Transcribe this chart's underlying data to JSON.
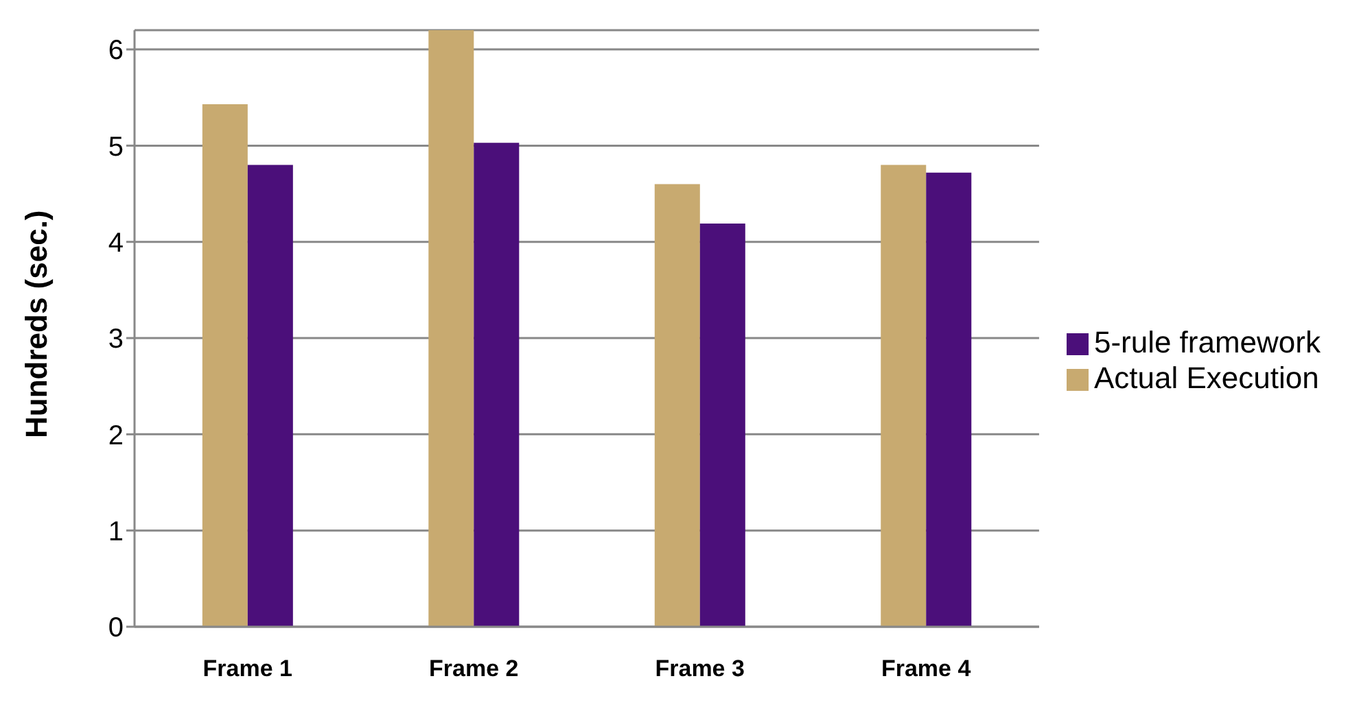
{
  "chart_data": {
    "type": "bar",
    "ylabel": "Hundreds (sec.)",
    "categories": [
      "Frame 1",
      "Frame 2",
      "Frame 3",
      "Frame 4"
    ],
    "series": [
      {
        "name": "Actual Execution",
        "color": "#c8aa70",
        "values": [
          5.43,
          6.2,
          4.6,
          4.8
        ]
      },
      {
        "name": "5-rule framework",
        "color": "#4b0f7a",
        "values": [
          4.8,
          5.03,
          4.19,
          4.72
        ]
      }
    ],
    "ylim": [
      0,
      6.2
    ],
    "yticks": [
      0,
      1,
      2,
      3,
      4,
      5,
      6
    ],
    "grid": "y",
    "legend": "right"
  }
}
